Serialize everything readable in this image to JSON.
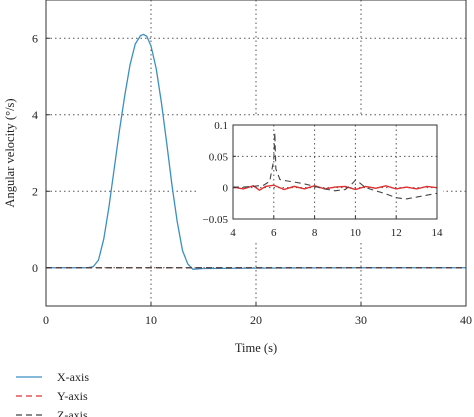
{
  "chart_data": [
    {
      "type": "line",
      "xlabel": "Time (s)",
      "ylabel": "Angular velocity (°/s)",
      "xlim": [
        0,
        40
      ],
      "ylim": [
        -1,
        7
      ],
      "xticks": [
        0,
        10,
        20,
        30,
        40
      ],
      "yticks": [
        0,
        2,
        4,
        6
      ],
      "grid": true,
      "legend": {
        "placement": "below-left",
        "entries": [
          "X-axis",
          "Y-axis",
          "Z-axis"
        ]
      },
      "series": [
        {
          "name": "X-axis",
          "color": "#3a8fc2",
          "style": "solid",
          "x": [
            0,
            4,
            4.5,
            5,
            5.5,
            6,
            6.5,
            7,
            7.5,
            8,
            8.5,
            9,
            9.3,
            9.6,
            10,
            10.5,
            11,
            11.5,
            12,
            12.5,
            13,
            13.5,
            14,
            14.5,
            15,
            20,
            30,
            40
          ],
          "y": [
            0,
            0,
            0.03,
            0.2,
            0.75,
            1.6,
            2.6,
            3.6,
            4.5,
            5.3,
            5.85,
            6.07,
            6.1,
            6.05,
            5.8,
            5.2,
            4.3,
            3.25,
            2.15,
            1.2,
            0.45,
            0.1,
            -0.04,
            -0.03,
            -0.02,
            -0.01,
            0,
            0
          ]
        },
        {
          "name": "Y-axis",
          "color": "#e03030",
          "style": "dashed",
          "x": [
            0,
            40
          ],
          "y": [
            0,
            0
          ]
        },
        {
          "name": "Z-axis",
          "color": "#444444",
          "style": "dashed",
          "x": [
            0,
            40
          ],
          "y": [
            0,
            0
          ]
        }
      ]
    },
    {
      "type": "line",
      "xlim": [
        4,
        14
      ],
      "ylim": [
        -0.05,
        0.1
      ],
      "xticks": [
        4,
        6,
        8,
        10,
        12,
        14
      ],
      "yticks": [
        -0.05,
        0,
        0.05,
        0.1
      ],
      "ytick_labels": [
        "−0.05",
        "0",
        "0.05",
        "0.1"
      ],
      "grid": true,
      "series": [
        {
          "name": "Y-axis",
          "color": "#e03030",
          "style": "solid",
          "x": [
            4,
            4.5,
            5,
            5.3,
            5.6,
            6,
            6.5,
            7,
            7.5,
            8,
            8.5,
            9,
            9.5,
            10,
            10.5,
            11,
            11.5,
            12,
            12.5,
            13,
            13.5,
            14
          ],
          "y": [
            0.001,
            -0.002,
            0.003,
            -0.004,
            0.002,
            0.004,
            -0.003,
            0.002,
            -0.002,
            0.003,
            -0.002,
            0.001,
            0.002,
            -0.003,
            0.002,
            -0.001,
            0.003,
            -0.002,
            0.001,
            -0.002,
            0.002,
            0.0
          ]
        },
        {
          "name": "Z-axis",
          "color": "#444444",
          "style": "dashed",
          "x": [
            4,
            4.5,
            5,
            5.5,
            5.8,
            6.0,
            6.05,
            6.1,
            6.3,
            6.6,
            7,
            7.5,
            8,
            8.5,
            9,
            9.5,
            9.8,
            10.0,
            10.2,
            10.5,
            11,
            11.5,
            12,
            12.5,
            13,
            13.5,
            14
          ],
          "y": [
            0.001,
            0.001,
            0.002,
            0.004,
            0.01,
            0.045,
            0.088,
            0.03,
            0.013,
            0.011,
            0.009,
            0.006,
            0.002,
            -0.002,
            -0.005,
            -0.003,
            0.005,
            0.012,
            0.008,
            0.0,
            -0.005,
            -0.01,
            -0.016,
            -0.018,
            -0.015,
            -0.012,
            -0.009
          ]
        }
      ]
    }
  ]
}
